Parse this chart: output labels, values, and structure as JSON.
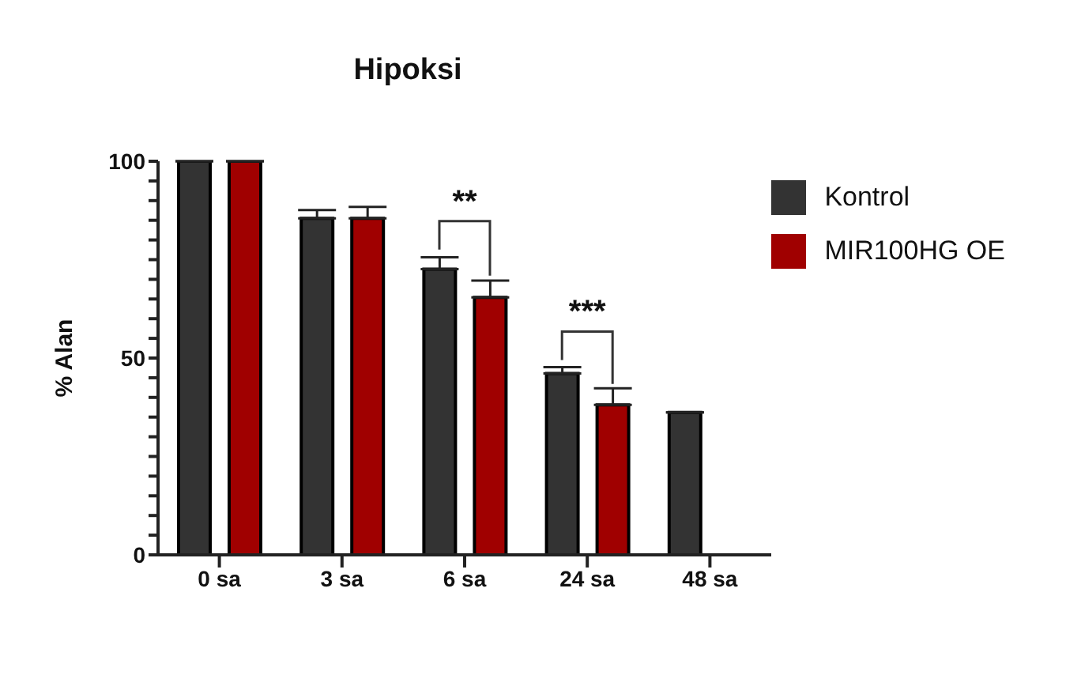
{
  "chart_data": {
    "type": "bar",
    "title": "Hipoksi",
    "ylabel": "% Alan",
    "categories": [
      "0 sa",
      "3 sa",
      "6 sa",
      "24 sa",
      "48 sa"
    ],
    "series": [
      {
        "name": "Kontrol",
        "color": "#333333",
        "values": [
          100,
          85.5,
          72.6,
          46.1,
          36.2
        ],
        "errors": [
          null,
          [
            85.5,
            87.6
          ],
          [
            72.6,
            75.6
          ],
          [
            46.1,
            47.7
          ],
          null
        ]
      },
      {
        "name": "MIR100HG OE",
        "color": "#a00000",
        "values": [
          100,
          85.5,
          65.4,
          38.1,
          null
        ],
        "errors": [
          null,
          [
            85.5,
            88.4
          ],
          [
            65.4,
            69.7
          ],
          [
            38.1,
            42.3
          ],
          null
        ]
      }
    ],
    "ylim": [
      0,
      100
    ],
    "yticks": [
      0,
      {
        "value": 5,
        "label": null
      },
      {
        "value": 10,
        "label": null
      },
      {
        "value": 15,
        "label": null
      },
      {
        "value": 20,
        "label": null
      },
      {
        "value": 25,
        "label": null
      },
      {
        "value": 30,
        "label": null
      },
      {
        "value": 35,
        "label": null
      },
      {
        "value": 40,
        "label": null
      },
      {
        "value": 45,
        "label": null
      },
      50,
      {
        "value": 55,
        "label": null
      },
      {
        "value": 60,
        "label": null
      },
      {
        "value": 65,
        "label": null
      },
      {
        "value": 70,
        "label": null
      },
      {
        "value": 75,
        "label": null
      },
      {
        "value": 80,
        "label": null
      },
      {
        "value": 85,
        "label": null
      },
      {
        "value": 90,
        "label": null
      },
      {
        "value": 95,
        "label": null
      },
      100
    ],
    "annotations": [
      {
        "text": "**",
        "x": "6 sa",
        "y": 72.6
      },
      {
        "text": "***",
        "x": "24 sa",
        "y": 46.1
      }
    ],
    "legend": "top right",
    "grid": false
  }
}
